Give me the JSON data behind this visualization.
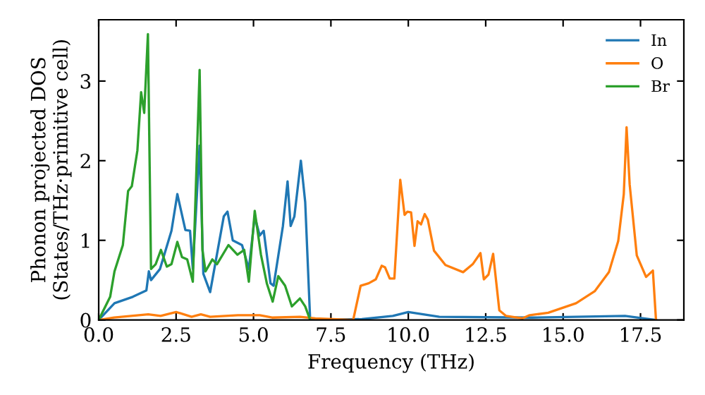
{
  "chart_data": {
    "type": "line",
    "xlabel": "Frequency (THz)",
    "ylabel": "Phonon projected DOS\n(States/THz·primitive cell)",
    "xlim": [
      0,
      18.9
    ],
    "ylim": [
      0,
      3.77
    ],
    "xticks": [
      {
        "value": 0,
        "label": "0.0"
      },
      {
        "value": 2.5,
        "label": "2.5"
      },
      {
        "value": 5,
        "label": "5.0"
      },
      {
        "value": 7.5,
        "label": "7.5"
      },
      {
        "value": 10,
        "label": "10.0"
      },
      {
        "value": 12.5,
        "label": "12.5"
      },
      {
        "value": 15,
        "label": "15.0"
      },
      {
        "value": 17.5,
        "label": "17.5"
      }
    ],
    "yticks": [
      0,
      1,
      2,
      3
    ],
    "grid": false,
    "legend": "top right",
    "series": [
      {
        "name": "In",
        "color": "#1f77b4",
        "x": [
          0,
          0.51,
          1.1,
          1.54,
          1.62,
          1.69,
          1.98,
          2.35,
          2.54,
          2.8,
          2.95,
          3.04,
          3.26,
          3.38,
          3.6,
          4.04,
          4.16,
          4.33,
          4.63,
          4.85,
          5.04,
          5.2,
          5.33,
          5.55,
          5.65,
          5.95,
          6.1,
          6.2,
          6.32,
          6.53,
          6.67,
          6.83,
          8.5,
          9.5,
          10,
          11,
          14,
          17,
          18
        ],
        "values": [
          0,
          0.21,
          0.29,
          0.37,
          0.61,
          0.5,
          0.64,
          1.12,
          1.58,
          1.13,
          1.12,
          0.64,
          2.19,
          0.58,
          0.35,
          1.3,
          1.36,
          1.0,
          0.94,
          0.64,
          1.3,
          1.06,
          1.12,
          0.46,
          0.43,
          1.18,
          1.74,
          1.18,
          1.3,
          2.0,
          1.48,
          0,
          0.01,
          0.05,
          0.1,
          0.04,
          0.03,
          0.05,
          0
        ]
      },
      {
        "name": "O",
        "color": "#ff7f0e",
        "x": [
          0,
          0.5,
          1.6,
          2,
          2.5,
          3,
          3.3,
          3.6,
          4.5,
          5.2,
          5.6,
          6.5,
          7,
          8.22,
          8.46,
          8.72,
          8.95,
          9.14,
          9.25,
          9.4,
          9.55,
          9.74,
          9.88,
          9.97,
          10.09,
          10.2,
          10.3,
          10.41,
          10.53,
          10.63,
          10.83,
          11.2,
          11.77,
          12.08,
          12.33,
          12.44,
          12.59,
          12.74,
          12.94,
          13.16,
          13.69,
          13.92,
          14.52,
          15.42,
          16.02,
          16.48,
          16.78,
          16.96,
          17.05,
          17.15,
          17.38,
          17.68,
          17.9,
          18.0
        ],
        "values": [
          0,
          0.03,
          0.07,
          0.05,
          0.1,
          0.04,
          0.07,
          0.04,
          0.06,
          0.06,
          0.03,
          0.04,
          0.02,
          0,
          0.43,
          0.46,
          0.51,
          0.68,
          0.66,
          0.52,
          0.52,
          1.76,
          1.32,
          1.36,
          1.35,
          0.93,
          1.24,
          1.2,
          1.33,
          1.26,
          0.87,
          0.69,
          0.6,
          0.7,
          0.84,
          0.51,
          0.57,
          0.83,
          0.12,
          0.05,
          0.02,
          0.06,
          0.09,
          0.21,
          0.36,
          0.6,
          0.99,
          1.58,
          2.42,
          1.7,
          0.81,
          0.54,
          0.62,
          0
        ]
      },
      {
        "name": "Br",
        "color": "#2ca02c",
        "x": [
          0,
          0.37,
          0.51,
          0.78,
          0.95,
          1.07,
          1.25,
          1.37,
          1.47,
          1.59,
          1.69,
          1.84,
          2.01,
          2.2,
          2.35,
          2.54,
          2.69,
          2.86,
          3.04,
          3.26,
          3.35,
          3.45,
          3.67,
          3.82,
          4.19,
          4.48,
          4.7,
          4.85,
          5.04,
          5.24,
          5.43,
          5.62,
          5.8,
          6.02,
          6.24,
          6.5,
          6.67,
          6.83
        ],
        "values": [
          0,
          0.29,
          0.61,
          0.94,
          1.62,
          1.68,
          2.13,
          2.86,
          2.6,
          3.59,
          0.64,
          0.7,
          0.88,
          0.67,
          0.7,
          0.98,
          0.79,
          0.76,
          0.48,
          3.14,
          0.88,
          0.61,
          0.76,
          0.7,
          0.94,
          0.82,
          0.88,
          0.48,
          1.37,
          0.82,
          0.46,
          0.23,
          0.55,
          0.43,
          0.17,
          0.27,
          0.17,
          0
        ]
      }
    ]
  }
}
